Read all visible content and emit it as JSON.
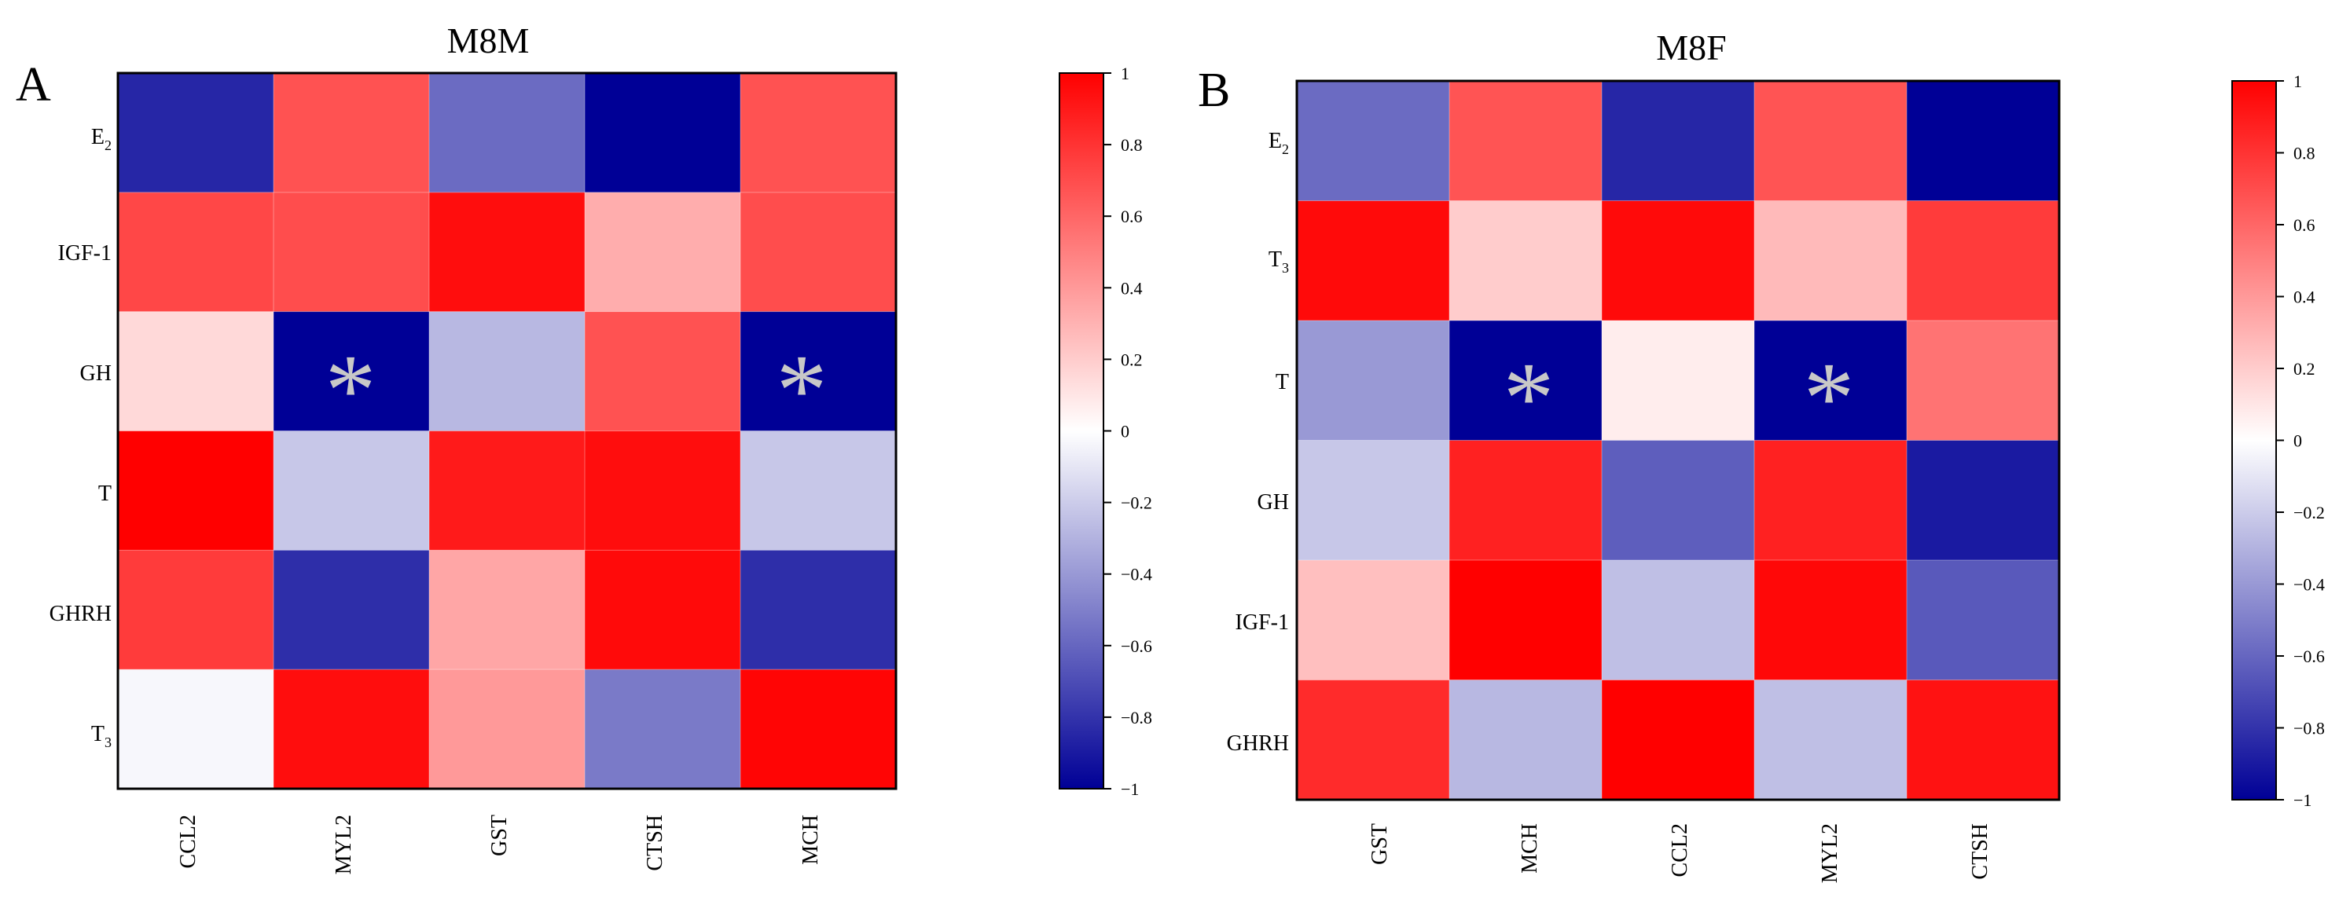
{
  "panels": [
    {
      "id": "A",
      "title": "M8M",
      "row_labels": [
        {
          "base": "E",
          "sub": "2"
        },
        {
          "base": "IGF-1",
          "sub": ""
        },
        {
          "base": "GH",
          "sub": ""
        },
        {
          "base": "T",
          "sub": ""
        },
        {
          "base": "GHRH",
          "sub": ""
        },
        {
          "base": "T",
          "sub": "3"
        }
      ],
      "col_labels": [
        "CCL2",
        "MYL2",
        "GST",
        "CTSH",
        "MCH"
      ],
      "significance_marker": "*"
    },
    {
      "id": "B",
      "title": "M8F",
      "row_labels": [
        {
          "base": "E",
          "sub": "2"
        },
        {
          "base": "T",
          "sub": "3"
        },
        {
          "base": "T",
          "sub": ""
        },
        {
          "base": "GH",
          "sub": ""
        },
        {
          "base": "IGF-1",
          "sub": ""
        },
        {
          "base": "GHRH",
          "sub": ""
        }
      ],
      "col_labels": [
        "GST",
        "MCH",
        "CCL2",
        "MYL2",
        "CTSH"
      ],
      "significance_marker": "*"
    }
  ],
  "colorbar": {
    "range": [
      -1,
      1
    ],
    "ticks": [
      1,
      0.8,
      0.6,
      0.4,
      0.2,
      0,
      -0.2,
      -0.4,
      -0.6,
      -0.8,
      -1
    ],
    "tick_labels": [
      "1",
      "0.8",
      "0.6",
      "0.4",
      "0.2",
      "0",
      "−0.2",
      "−0.4",
      "−0.6",
      "−0.8",
      "−1"
    ],
    "colors": {
      "negative": "#000096",
      "zero": "#ffffff",
      "positive": "#ff0000"
    }
  },
  "chart_data": [
    {
      "type": "heatmap",
      "title": "M8M",
      "rows": [
        "E2",
        "IGF-1",
        "GH",
        "T",
        "GHRH",
        "T3"
      ],
      "columns": [
        "CCL2",
        "MYL2",
        "GST",
        "CTSH",
        "MCH"
      ],
      "values": [
        [
          -0.85,
          0.68,
          -0.58,
          -1.0,
          0.68
        ],
        [
          0.72,
          0.7,
          0.95,
          0.32,
          0.7
        ],
        [
          0.15,
          -1.0,
          -0.28,
          0.68,
          -1.0
        ],
        [
          1.0,
          -0.22,
          0.9,
          0.95,
          -0.22
        ],
        [
          0.77,
          -0.82,
          0.35,
          0.96,
          -0.82
        ],
        [
          -0.03,
          0.95,
          0.4,
          -0.52,
          0.98
        ]
      ],
      "significant": [
        [
          2,
          1
        ],
        [
          2,
          4
        ]
      ],
      "value_range": [
        -1,
        1
      ]
    },
    {
      "type": "heatmap",
      "title": "M8F",
      "rows": [
        "E2",
        "T3",
        "T",
        "GH",
        "IGF-1",
        "GHRH"
      ],
      "columns": [
        "GST",
        "MCH",
        "CCL2",
        "MYL2",
        "CTSH"
      ],
      "values": [
        [
          -0.58,
          0.67,
          -0.85,
          0.67,
          -1.0
        ],
        [
          0.96,
          0.2,
          0.96,
          0.27,
          0.77
        ],
        [
          -0.4,
          -1.0,
          0.07,
          -1.0,
          0.55
        ],
        [
          -0.22,
          0.87,
          -0.63,
          0.87,
          -0.9
        ],
        [
          0.25,
          1.0,
          -0.25,
          0.97,
          -0.65
        ],
        [
          0.83,
          -0.28,
          1.0,
          -0.25,
          0.93
        ]
      ],
      "significant": [
        [
          2,
          1
        ],
        [
          2,
          3
        ]
      ],
      "value_range": [
        -1,
        1
      ]
    }
  ]
}
